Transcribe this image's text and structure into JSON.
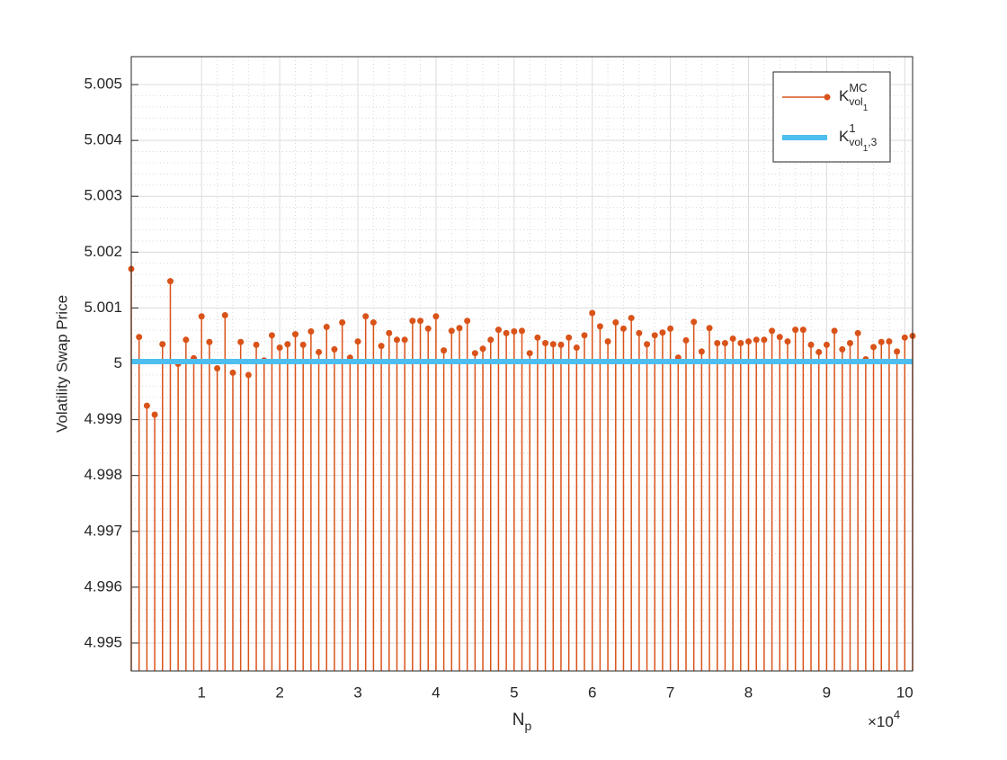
{
  "chart_data": {
    "type": "stem",
    "xlabel": {
      "text": "N",
      "subscript": "p"
    },
    "ylabel": "Volatility Swap Price",
    "x_exponent": {
      "text": "×10",
      "superscript": "4"
    },
    "x": [
      1000,
      2000,
      3000,
      4000,
      5000,
      6000,
      7000,
      8000,
      9000,
      10000,
      11000,
      12000,
      13000,
      14000,
      15000,
      16000,
      17000,
      18000,
      19000,
      20000,
      21000,
      22000,
      23000,
      24000,
      25000,
      26000,
      27000,
      28000,
      29000,
      30000,
      31000,
      32000,
      33000,
      34000,
      35000,
      36000,
      37000,
      38000,
      39000,
      40000,
      41000,
      42000,
      43000,
      44000,
      45000,
      46000,
      47000,
      48000,
      49000,
      50000,
      51000,
      52000,
      53000,
      54000,
      55000,
      56000,
      57000,
      58000,
      59000,
      60000,
      61000,
      62000,
      63000,
      64000,
      65000,
      66000,
      67000,
      68000,
      69000,
      70000,
      71000,
      72000,
      73000,
      74000,
      75000,
      76000,
      77000,
      78000,
      79000,
      80000,
      81000,
      82000,
      83000,
      84000,
      85000,
      86000,
      87000,
      88000,
      89000,
      90000,
      91000,
      92000,
      93000,
      94000,
      95000,
      96000,
      97000,
      98000,
      99000,
      100000,
      101000
    ],
    "series": [
      {
        "name": "K",
        "superscript": "MC",
        "subscript": [
          {
            "text": "vol"
          },
          {
            "text": "1",
            "level": 2
          }
        ],
        "color": "#D95319",
        "kind": "stem",
        "values": [
          5.0017,
          5.00048,
          4.99925,
          4.99909,
          5.00035,
          5.00148,
          5.0,
          5.00043,
          5.0001,
          5.00085,
          5.00039,
          4.99992,
          5.00087,
          4.99984,
          5.00039,
          4.9998,
          5.00034,
          5.00006,
          5.00051,
          5.00029,
          5.00035,
          5.00053,
          5.00034,
          5.00058,
          5.00021,
          5.00066,
          5.00026,
          5.00074,
          5.00011,
          5.0004,
          5.00085,
          5.00074,
          5.00032,
          5.00055,
          5.00043,
          5.00043,
          5.00077,
          5.00077,
          5.00063,
          5.00085,
          5.00024,
          5.00059,
          5.00064,
          5.00077,
          5.00019,
          5.00027,
          5.00043,
          5.00061,
          5.00055,
          5.00058,
          5.00059,
          5.00019,
          5.00047,
          5.00037,
          5.00035,
          5.00034,
          5.00047,
          5.00029,
          5.00051,
          5.00091,
          5.00067,
          5.0004,
          5.00074,
          5.00063,
          5.00082,
          5.00055,
          5.00035,
          5.00051,
          5.00056,
          5.00063,
          5.00011,
          5.00042,
          5.00075,
          5.00022,
          5.00064,
          5.00037,
          5.00037,
          5.00045,
          5.00037,
          5.0004,
          5.00043,
          5.00043,
          5.00059,
          5.00048,
          5.0004,
          5.00061,
          5.00061,
          5.00034,
          5.00021,
          5.00034,
          5.00059,
          5.00026,
          5.00037,
          5.00055,
          5.00008,
          5.0003,
          5.00039,
          5.0004,
          5.00022,
          5.00047,
          5.0005
        ]
      },
      {
        "name": "K",
        "superscript": "1",
        "subscript": [
          {
            "text": "vol"
          },
          {
            "text": "1",
            "level": 2
          },
          {
            "text": ",3"
          }
        ],
        "color": "#4DBEEE",
        "kind": "hline",
        "value": 5.00004
      }
    ],
    "xlim": [
      1000,
      101000
    ],
    "xticks": [
      {
        "value": 10000,
        "label": "1"
      },
      {
        "value": 20000,
        "label": "2"
      },
      {
        "value": 30000,
        "label": "3"
      },
      {
        "value": 40000,
        "label": "4"
      },
      {
        "value": 50000,
        "label": "5"
      },
      {
        "value": 60000,
        "label": "6"
      },
      {
        "value": 70000,
        "label": "7"
      },
      {
        "value": 80000,
        "label": "8"
      },
      {
        "value": 90000,
        "label": "9"
      },
      {
        "value": 100000,
        "label": "10"
      }
    ],
    "ylim": [
      4.9945,
      5.0055
    ],
    "yticks": [
      4.995,
      4.996,
      4.997,
      4.998,
      4.999,
      5,
      5.001,
      5.002,
      5.003,
      5.004,
      5.005
    ],
    "grid": true,
    "minor_grid": true,
    "legend": "northeast"
  }
}
